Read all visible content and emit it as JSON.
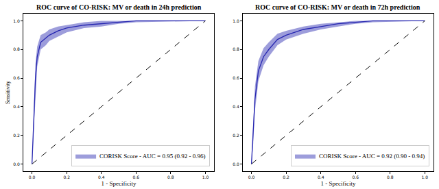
{
  "chart_data": [
    {
      "type": "line",
      "title": "ROC curve of CO-RISK: MV or death in 24h prediction",
      "xlabel": "1 - Specificity",
      "ylabel": "Sensitivity",
      "xlim": [
        -0.05,
        1.05
      ],
      "ylim": [
        -0.05,
        1.05
      ],
      "xticks": [
        {
          "value": 0,
          "label": "0.0"
        },
        0.2,
        0.4,
        0.6,
        0.8,
        {
          "value": 1,
          "label": "1.0"
        }
      ],
      "yticks": [
        {
          "value": 0,
          "label": "0.0"
        },
        0.2,
        0.4,
        0.6,
        0.8,
        {
          "value": 1,
          "label": "1.0"
        }
      ],
      "grid": false,
      "legend": "lower right",
      "series": [
        {
          "name": "CORISK Score - AUC = 0.95 (0.92 - 0.96)",
          "color": "#2626b0",
          "x": [
            0,
            0.01,
            0.02,
            0.03,
            0.05,
            0.08,
            0.1,
            0.15,
            0.2,
            0.3,
            0.4,
            0.5,
            0.6,
            1.0
          ],
          "values": [
            0,
            0.3,
            0.6,
            0.75,
            0.85,
            0.88,
            0.9,
            0.93,
            0.95,
            0.97,
            0.98,
            0.99,
            1.0,
            1.0
          ],
          "lower": [
            0,
            0.22,
            0.5,
            0.68,
            0.8,
            0.83,
            0.86,
            0.89,
            0.92,
            0.95,
            0.96,
            0.98,
            0.99,
            1.0
          ],
          "upper": [
            0,
            0.4,
            0.7,
            0.82,
            0.9,
            0.92,
            0.94,
            0.96,
            0.97,
            0.99,
            1.0,
            1.0,
            1.0,
            1.0
          ]
        },
        {
          "type": "line",
          "color": "#000000",
          "line_style": "dashed",
          "x": [
            0,
            1
          ],
          "values": [
            0,
            1
          ]
        }
      ]
    },
    {
      "type": "line",
      "title": "ROC curve of CO-RISK: MV or death in 72h prediction",
      "xlabel": "1 - Specificity",
      "xlim": [
        -0.05,
        1.05
      ],
      "ylim": [
        -0.05,
        1.05
      ],
      "xticks": [
        {
          "value": 0,
          "label": "0.0"
        },
        0.2,
        0.4,
        0.6,
        0.8,
        {
          "value": 1,
          "label": "1.0"
        }
      ],
      "yticks": [
        {
          "value": 0,
          "label": "0.0"
        },
        0.2,
        0.4,
        0.6,
        0.8,
        {
          "value": 1,
          "label": "1.0"
        }
      ],
      "grid": false,
      "legend": "lower right",
      "series": [
        {
          "name": "CORISK Score - AUC = 0.92 (0.90 - 0.94)",
          "color": "#2626b0",
          "x": [
            0,
            0.01,
            0.02,
            0.04,
            0.07,
            0.1,
            0.15,
            0.2,
            0.3,
            0.4,
            0.5,
            0.6,
            0.7,
            1.0
          ],
          "values": [
            0,
            0.2,
            0.45,
            0.65,
            0.75,
            0.8,
            0.87,
            0.9,
            0.94,
            0.96,
            0.98,
            0.99,
            1.0,
            1.0
          ],
          "lower": [
            0,
            0.14,
            0.37,
            0.58,
            0.69,
            0.75,
            0.83,
            0.87,
            0.91,
            0.94,
            0.96,
            0.98,
            0.99,
            1.0
          ],
          "upper": [
            0,
            0.28,
            0.54,
            0.72,
            0.81,
            0.85,
            0.91,
            0.93,
            0.96,
            0.98,
            0.99,
            1.0,
            1.0,
            1.0
          ]
        },
        {
          "type": "line",
          "color": "#000000",
          "line_style": "dashed",
          "x": [
            0,
            1
          ],
          "values": [
            0,
            1
          ]
        }
      ]
    }
  ]
}
